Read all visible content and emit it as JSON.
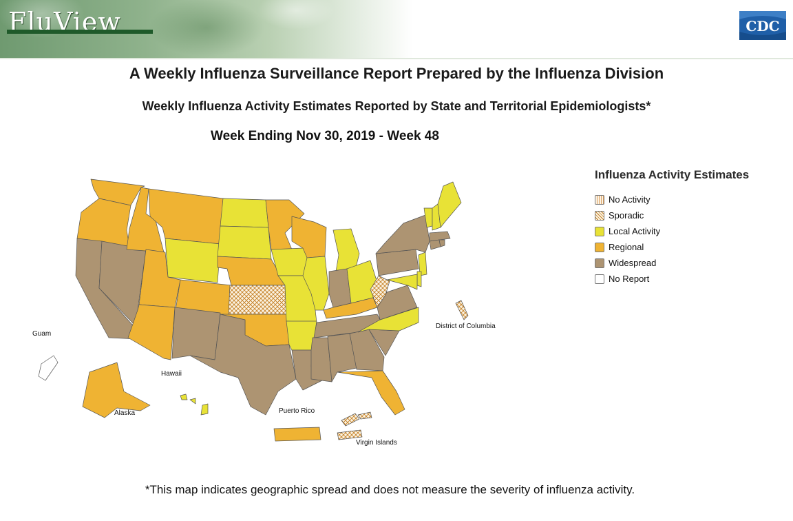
{
  "header": {
    "logo_text": "FluView",
    "agency": "CDC"
  },
  "titles": {
    "main": "A Weekly Influenza Surveillance Report Prepared by the Influenza Division",
    "sub": "Weekly Influenza Activity Estimates Reported by State and Territorial Epidemiologists*",
    "week": "Week Ending Nov 30, 2019 - Week 48"
  },
  "legend": {
    "title": "Influenza Activity Estimates",
    "items": [
      {
        "key": "none",
        "label": "No Activity",
        "color": "#fbe9d2"
      },
      {
        "key": "sporadic",
        "label": "Sporadic",
        "color": "#f6e7c8"
      },
      {
        "key": "local",
        "label": "Local Activity",
        "color": "#e8e236"
      },
      {
        "key": "regional",
        "label": "Regional",
        "color": "#efb333"
      },
      {
        "key": "widespread",
        "label": "Widespread",
        "color": "#ad9472"
      },
      {
        "key": "no_report",
        "label": "No Report",
        "color": "#ffffff"
      }
    ]
  },
  "map": {
    "labels": {
      "guam": "Guam",
      "hawaii": "Hawaii",
      "alaska": "Alaska",
      "puerto_rico": "Puerto Rico",
      "virgin_islands": "Virgin Islands",
      "dc": "District of Columbia"
    },
    "activity": {
      "Washington": "regional",
      "Oregon": "regional",
      "California": "widespread",
      "Nevada": "widespread",
      "Idaho": "regional",
      "Montana": "regional",
      "Wyoming": "local",
      "Utah": "regional",
      "Colorado": "regional",
      "Arizona": "regional",
      "New Mexico": "widespread",
      "North Dakota": "local",
      "South Dakota": "local",
      "Nebraska": "regional",
      "Kansas": "sporadic",
      "Oklahoma": "regional",
      "Texas": "widespread",
      "Minnesota": "regional",
      "Iowa": "local",
      "Missouri": "local",
      "Arkansas": "local",
      "Louisiana": "widespread",
      "Wisconsin": "regional",
      "Illinois": "local",
      "Michigan": "local",
      "Indiana": "widespread",
      "Ohio": "local",
      "Kentucky": "regional",
      "Tennessee": "widespread",
      "Mississippi": "widespread",
      "Alabama": "widespread",
      "Georgia": "widespread",
      "Florida": "regional",
      "South Carolina": "widespread",
      "North Carolina": "local",
      "Virginia": "widespread",
      "West Virginia": "sporadic",
      "Pennsylvania": "widespread",
      "New York": "widespread",
      "Vermont": "local",
      "New Hampshire": "local",
      "Maine": "local",
      "Massachusetts": "widespread",
      "Connecticut": "widespread",
      "Rhode Island": "widespread",
      "New Jersey": "local",
      "Delaware": "local",
      "Maryland": "local",
      "District of Columbia": "sporadic",
      "Alaska": "regional",
      "Hawaii": "local",
      "Guam": "no_report",
      "Puerto Rico": "regional",
      "Virgin Islands": "sporadic"
    }
  },
  "footnote": "*This map indicates geographic spread and does not measure the severity of influenza activity."
}
